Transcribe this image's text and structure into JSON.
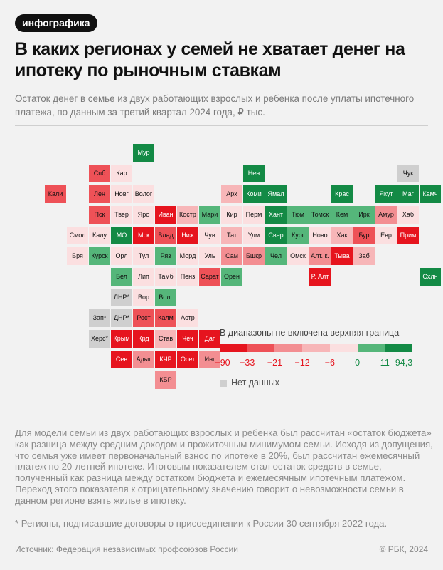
{
  "header": {
    "badge": "инфографика",
    "title": "В каких регионах у семей не хватает денег на ипотеку по рыночным ставкам",
    "subtitle": "Остаток денег в семье из двух работающих взрослых и ребенка после уплаты ипотечного платежа, по данным за третий квартал 2024 года, ₽ тыс."
  },
  "legend": {
    "title": "В диапазоны не включена верхняя граница",
    "ticks": [
      "−90",
      "−33",
      "−21",
      "−12",
      "−6",
      "0",
      "11",
      "94,3"
    ],
    "colors": [
      "#e6141e",
      "#ee5157",
      "#f38e92",
      "#f7b6b8",
      "#fbdfe0",
      "#55b67a",
      "#138a45"
    ],
    "tick_colors": [
      "#e6141e",
      "#e6141e",
      "#e6141e",
      "#e6141e",
      "#e6141e",
      "#138a45",
      "#138a45",
      "#138a45"
    ],
    "nodata_label": "Нет данных",
    "nodata_color": "#cfcfcf"
  },
  "color_scale": {
    "r1": "#e6141e",
    "r2": "#ee5157",
    "r3": "#f38e92",
    "r4": "#f7b6b8",
    "r5": "#fbdfe0",
    "g1": "#55b67a",
    "g2": "#138a45",
    "nd": "#cfcfcf"
  },
  "map_cells": [
    {
      "label": "Мур",
      "c": "g2",
      "col": 5,
      "row": 0
    },
    {
      "label": "Спб",
      "c": "r2",
      "col": 3,
      "row": 1
    },
    {
      "label": "Кар",
      "c": "r5",
      "col": 4,
      "row": 1
    },
    {
      "label": "Нен",
      "c": "g2",
      "col": 10,
      "row": 1
    },
    {
      "label": "Чук",
      "c": "nd",
      "col": 17,
      "row": 1
    },
    {
      "label": "Кали",
      "c": "r2",
      "col": 1,
      "row": 2
    },
    {
      "label": "Лен",
      "c": "r2",
      "col": 3,
      "row": 2
    },
    {
      "label": "Новг",
      "c": "r5",
      "col": 4,
      "row": 2
    },
    {
      "label": "Волог",
      "c": "r5",
      "col": 5,
      "row": 2
    },
    {
      "label": "Арх",
      "c": "r4",
      "col": 9,
      "row": 2
    },
    {
      "label": "Коми",
      "c": "g2",
      "col": 10,
      "row": 2
    },
    {
      "label": "Ямал",
      "c": "g2",
      "col": 11,
      "row": 2
    },
    {
      "label": "Крас",
      "c": "g2",
      "col": 14,
      "row": 2
    },
    {
      "label": "Якут",
      "c": "g2",
      "col": 16,
      "row": 2
    },
    {
      "label": "Маг",
      "c": "g2",
      "col": 17,
      "row": 2
    },
    {
      "label": "Камч",
      "c": "g2",
      "col": 18,
      "row": 2
    },
    {
      "label": "Пск",
      "c": "r2",
      "col": 3,
      "row": 3
    },
    {
      "label": "Твер",
      "c": "r5",
      "col": 4,
      "row": 3
    },
    {
      "label": "Яро",
      "c": "r5",
      "col": 5,
      "row": 3
    },
    {
      "label": "Иван",
      "c": "r1",
      "col": 6,
      "row": 3
    },
    {
      "label": "Костр",
      "c": "r4",
      "col": 7,
      "row": 3
    },
    {
      "label": "Мари",
      "c": "g1",
      "col": 8,
      "row": 3
    },
    {
      "label": "Кир",
      "c": "r5",
      "col": 9,
      "row": 3
    },
    {
      "label": "Перм",
      "c": "r5",
      "col": 10,
      "row": 3
    },
    {
      "label": "Хант",
      "c": "g2",
      "col": 11,
      "row": 3
    },
    {
      "label": "Тюм",
      "c": "g1",
      "col": 12,
      "row": 3
    },
    {
      "label": "Томск",
      "c": "g1",
      "col": 13,
      "row": 3
    },
    {
      "label": "Кем",
      "c": "g1",
      "col": 14,
      "row": 3
    },
    {
      "label": "Ирк",
      "c": "g1",
      "col": 15,
      "row": 3
    },
    {
      "label": "Амур",
      "c": "r3",
      "col": 16,
      "row": 3
    },
    {
      "label": "Хаб",
      "c": "r5",
      "col": 17,
      "row": 3
    },
    {
      "label": "Смол",
      "c": "r5",
      "col": 2,
      "row": 4
    },
    {
      "label": "Калу",
      "c": "r5",
      "col": 3,
      "row": 4
    },
    {
      "label": "МО",
      "c": "g2",
      "col": 4,
      "row": 4
    },
    {
      "label": "Мск",
      "c": "r1",
      "col": 5,
      "row": 4
    },
    {
      "label": "Влад",
      "c": "r2",
      "col": 6,
      "row": 4
    },
    {
      "label": "Ниж",
      "c": "r1",
      "col": 7,
      "row": 4
    },
    {
      "label": "Чув",
      "c": "r5",
      "col": 8,
      "row": 4
    },
    {
      "label": "Тат",
      "c": "r4",
      "col": 9,
      "row": 4
    },
    {
      "label": "Удм",
      "c": "r5",
      "col": 10,
      "row": 4
    },
    {
      "label": "Свер",
      "c": "g2",
      "col": 11,
      "row": 4
    },
    {
      "label": "Кург",
      "c": "g1",
      "col": 12,
      "row": 4
    },
    {
      "label": "Ново",
      "c": "r5",
      "col": 13,
      "row": 4
    },
    {
      "label": "Хак",
      "c": "r4",
      "col": 14,
      "row": 4
    },
    {
      "label": "Бур",
      "c": "r2",
      "col": 15,
      "row": 4
    },
    {
      "label": "Евр",
      "c": "r5",
      "col": 16,
      "row": 4
    },
    {
      "label": "Прим",
      "c": "r1",
      "col": 17,
      "row": 4
    },
    {
      "label": "Бря",
      "c": "r5",
      "col": 2,
      "row": 5
    },
    {
      "label": "Курск",
      "c": "g1",
      "col": 3,
      "row": 5
    },
    {
      "label": "Орл",
      "c": "r5",
      "col": 4,
      "row": 5
    },
    {
      "label": "Тул",
      "c": "r5",
      "col": 5,
      "row": 5
    },
    {
      "label": "Ряз",
      "c": "g1",
      "col": 6,
      "row": 5
    },
    {
      "label": "Морд",
      "c": "r5",
      "col": 7,
      "row": 5
    },
    {
      "label": "Уль",
      "c": "r5",
      "col": 8,
      "row": 5
    },
    {
      "label": "Сам",
      "c": "r3",
      "col": 9,
      "row": 5
    },
    {
      "label": "Бшкр",
      "c": "r3",
      "col": 10,
      "row": 5
    },
    {
      "label": "Чел",
      "c": "g1",
      "col": 11,
      "row": 5
    },
    {
      "label": "Омск",
      "c": "r5",
      "col": 12,
      "row": 5
    },
    {
      "label": "Алт. к.",
      "c": "r3",
      "col": 13,
      "row": 5
    },
    {
      "label": "Тыва",
      "c": "r1",
      "col": 14,
      "row": 5
    },
    {
      "label": "Заб",
      "c": "r4",
      "col": 15,
      "row": 5
    },
    {
      "label": "Бел",
      "c": "g1",
      "col": 4,
      "row": 6
    },
    {
      "label": "Лип",
      "c": "r5",
      "col": 5,
      "row": 6
    },
    {
      "label": "Тамб",
      "c": "r5",
      "col": 6,
      "row": 6
    },
    {
      "label": "Пенз",
      "c": "r5",
      "col": 7,
      "row": 6
    },
    {
      "label": "Сарат",
      "c": "r2",
      "col": 8,
      "row": 6
    },
    {
      "label": "Орен",
      "c": "g1",
      "col": 9,
      "row": 6
    },
    {
      "label": "Р. Алт",
      "c": "r1",
      "col": 13,
      "row": 6
    },
    {
      "label": "Схлн",
      "c": "g2",
      "col": 18,
      "row": 6
    },
    {
      "label": "ЛНР*",
      "c": "nd",
      "col": 4,
      "row": 7
    },
    {
      "label": "Вор",
      "c": "r5",
      "col": 5,
      "row": 7
    },
    {
      "label": "Волг",
      "c": "g1",
      "col": 6,
      "row": 7
    },
    {
      "label": "Зап*",
      "c": "nd",
      "col": 3,
      "row": 8
    },
    {
      "label": "ДНР*",
      "c": "nd",
      "col": 4,
      "row": 8
    },
    {
      "label": "Рост",
      "c": "r2",
      "col": 5,
      "row": 8
    },
    {
      "label": "Калм",
      "c": "r2",
      "col": 6,
      "row": 8
    },
    {
      "label": "Астр",
      "c": "r5",
      "col": 7,
      "row": 8
    },
    {
      "label": "Херс*",
      "c": "nd",
      "col": 3,
      "row": 9
    },
    {
      "label": "Крым",
      "c": "r1",
      "col": 4,
      "row": 9
    },
    {
      "label": "Крд",
      "c": "r1",
      "col": 5,
      "row": 9
    },
    {
      "label": "Став",
      "c": "r4",
      "col": 6,
      "row": 9
    },
    {
      "label": "Чеч",
      "c": "r1",
      "col": 7,
      "row": 9
    },
    {
      "label": "Даг",
      "c": "r1",
      "col": 8,
      "row": 9
    },
    {
      "label": "Сев",
      "c": "r1",
      "col": 4,
      "row": 10
    },
    {
      "label": "Адыг",
      "c": "r3",
      "col": 5,
      "row": 10
    },
    {
      "label": "КЧР",
      "c": "r1",
      "col": 6,
      "row": 10
    },
    {
      "label": "Осет",
      "c": "r1",
      "col": 7,
      "row": 10
    },
    {
      "label": "Инг",
      "c": "r3",
      "col": 8,
      "row": 10
    },
    {
      "label": "КБР",
      "c": "r3",
      "col": 6,
      "row": 11
    }
  ],
  "body": {
    "text": "Для модели семьи из двух работающих взрослых и ребенка был рассчитан «остаток бюджета» как разница между средним доходом и прожиточным минимумом семьи. Исходя из допущения, что семья уже имеет первоначальный взнос по ипотеке в 20%, был рассчитан ежемесячный платеж по 20-летней ипотеке. Итоговым показателем стал остаток средств в семье, полученный как разница между остатком бюджета и ежемесячным ипотечным платежом. Переход этого показателя к отрицательному значению говорит о невозможности семьи в данном регионе взять жилье в ипотеку.",
    "footnote": "* Регионы, подписавшие договоры о присоединении к России 30 сентября 2022 года."
  },
  "footer": {
    "source": "Источник: Федерация независимых профсоюзов России",
    "copyright": "© РБК, 2024"
  }
}
